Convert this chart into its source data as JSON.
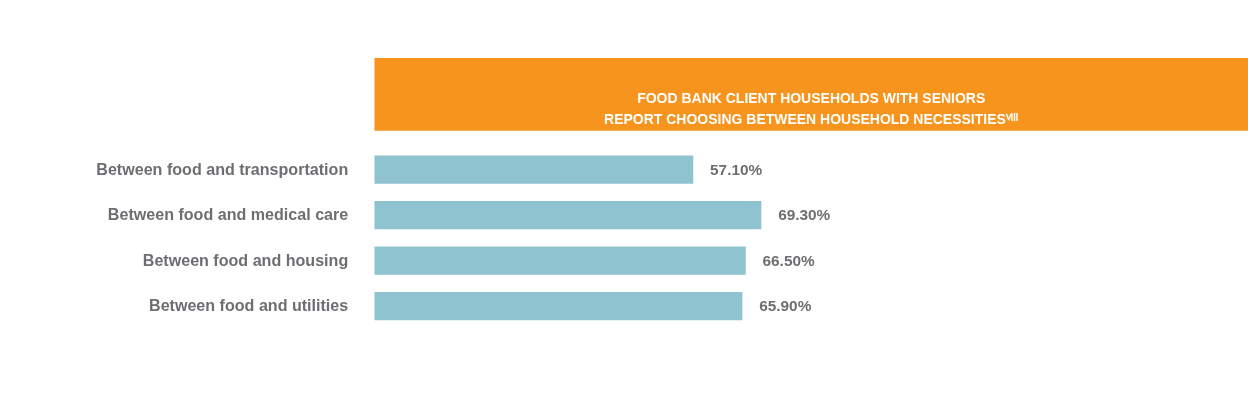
{
  "chart_data": {
    "type": "bar",
    "orientation": "horizontal",
    "title": "FOOD BANK CLIENT HOUSEHOLDS WITH SENIORS\nREPORT CHOOSING BETWEEN HOUSEHOLD NECESSITIESⱽᴵᴵᴵ",
    "categories": [
      "Between food and transportation",
      "Between food and medical care",
      "Between food and housing",
      "Between food and utilities"
    ],
    "values": [
      57.1,
      69.3,
      66.5,
      65.9
    ],
    "value_labels": [
      "57.10%",
      "69.30%",
      "66.50%",
      "65.90%"
    ],
    "color": "#8fc3d0"
  }
}
